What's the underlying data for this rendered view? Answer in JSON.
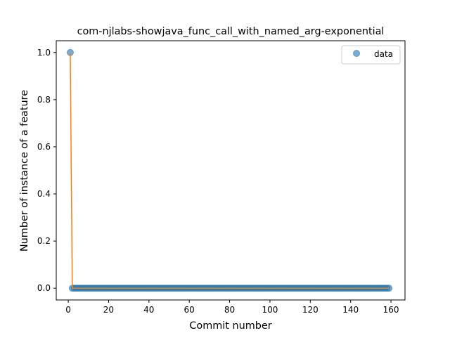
{
  "chart_data": {
    "type": "scatter",
    "title": "com-njlabs-showjava_func_call_with_named_arg-exponential",
    "xlabel": "Commit number",
    "ylabel": "Number of instance of a feature",
    "xlim": [
      -5.95,
      166.95
    ],
    "ylim": [
      -0.05,
      1.05
    ],
    "xticks": [
      0,
      20,
      40,
      60,
      80,
      100,
      120,
      140,
      160
    ],
    "yticks": [
      0.0,
      0.2,
      0.4,
      0.6,
      0.8,
      1.0
    ],
    "ytick_labels": [
      "0.0",
      "0.2",
      "0.4",
      "0.6",
      "0.8",
      "1.0"
    ],
    "legend": {
      "position": "top-right",
      "entries": [
        "data"
      ]
    },
    "grid": false,
    "colors": {
      "data": "#1f77b4",
      "fit": "#ff7f0e"
    },
    "series": [
      {
        "name": "data",
        "kind": "scatter",
        "x_start": 1,
        "x_end": 159,
        "nonzero_points": [
          [
            1,
            1.0
          ]
        ],
        "default_y": 0.0
      },
      {
        "kind": "line",
        "points": [
          [
            1,
            1.0
          ],
          [
            2,
            0.0
          ],
          [
            159,
            0.0
          ]
        ]
      }
    ]
  }
}
